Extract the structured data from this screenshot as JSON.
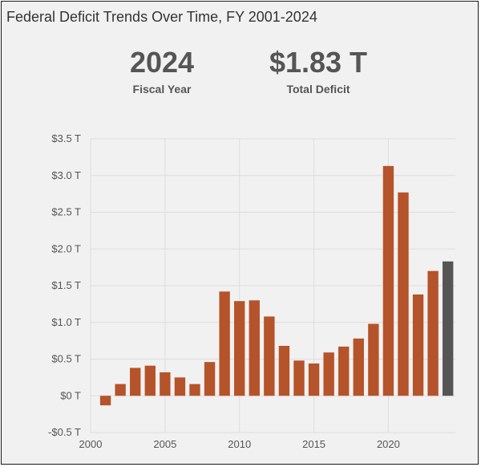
{
  "header": {
    "title": "Federal Deficit Trends Over Time, FY 2001-2024"
  },
  "kpis": {
    "year": {
      "value": "2024",
      "label": "Fiscal Year"
    },
    "deficit": {
      "value": "$1.83 T",
      "label": "Total Deficit"
    }
  },
  "colors": {
    "bar": "#b5532a",
    "highlight": "#555555",
    "grid": "#dddddd",
    "background": "#f1f1f1"
  },
  "chart_data": {
    "type": "bar",
    "title": "",
    "xlabel": "",
    "ylabel": "",
    "x": [
      2001,
      2002,
      2003,
      2004,
      2005,
      2006,
      2007,
      2008,
      2009,
      2010,
      2011,
      2012,
      2013,
      2014,
      2015,
      2016,
      2017,
      2018,
      2019,
      2020,
      2021,
      2022,
      2023,
      2024
    ],
    "values": [
      -0.13,
      0.16,
      0.38,
      0.41,
      0.32,
      0.25,
      0.16,
      0.46,
      1.42,
      1.29,
      1.3,
      1.08,
      0.68,
      0.48,
      0.44,
      0.59,
      0.67,
      0.78,
      0.98,
      3.13,
      2.77,
      1.38,
      1.7,
      1.83
    ],
    "highlight_x": 2024,
    "ylim": [
      -0.5,
      3.5
    ],
    "xlim": [
      2000,
      2024.5
    ],
    "yticks": [
      -0.5,
      0,
      0.5,
      1.0,
      1.5,
      2.0,
      2.5,
      3.0,
      3.5
    ],
    "ytick_labels": [
      "-$0.5 T",
      "$0 T",
      "$0.5 T",
      "$1.0 T",
      "$1.5 T",
      "$2.0 T",
      "$2.5 T",
      "$3.0 T",
      "$3.5 T"
    ],
    "xticks": [
      2000,
      2005,
      2010,
      2015,
      2020
    ],
    "xtick_labels": [
      "2000",
      "2005",
      "2010",
      "2015",
      "2020"
    ],
    "grid": true,
    "legend": "none"
  }
}
